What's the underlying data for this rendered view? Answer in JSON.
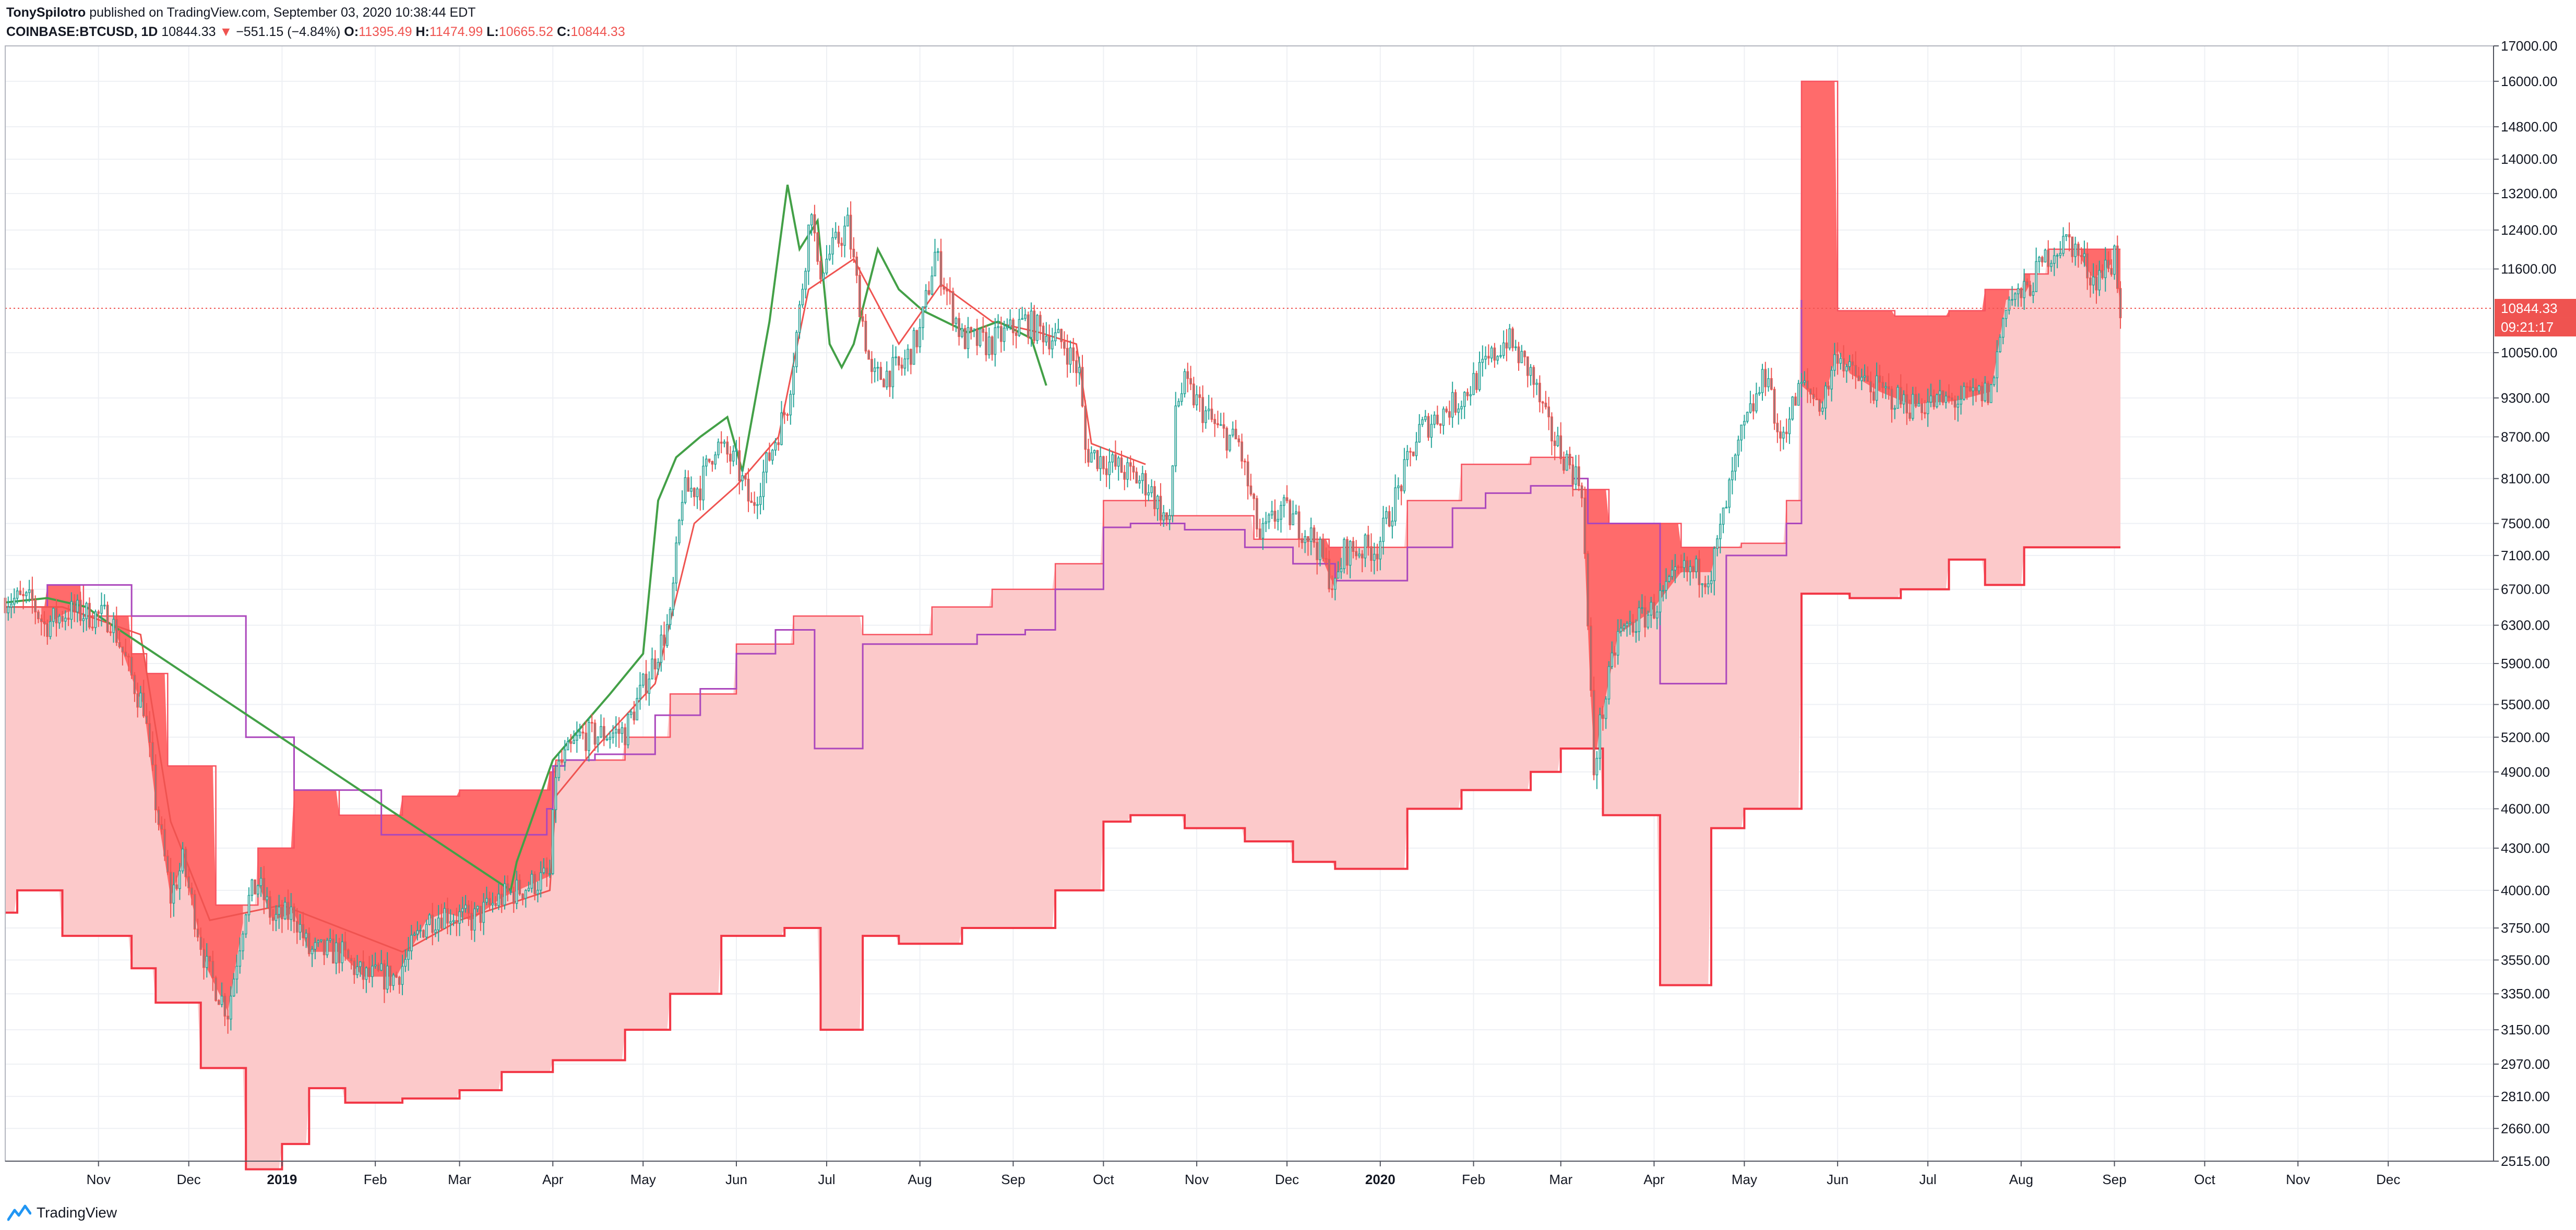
{
  "header": {
    "author": "TonySpilotro",
    "published_text": "published on TradingView.com, September 03, 2020 10:38:44 EDT",
    "symbol": "COINBASE:BTCUSD, 1D",
    "last": "10844.33",
    "change_arrow": "▼",
    "change": "−551.15 (−4.84%)",
    "o_label": "O:",
    "o_value": "11395.49",
    "h_label": "H:",
    "h_value": "11474.99",
    "l_label": "L:",
    "l_value": "10665.52",
    "c_label": "C:",
    "c_value": "10844.33"
  },
  "price_badge": {
    "price": "10844.33",
    "countdown": "09:21:17"
  },
  "footer": {
    "brand": "TradingView",
    "logo_icon": "tradingview-logo-icon"
  },
  "colors": {
    "background": "#ffffff",
    "grid": "#eef0f4",
    "up": "#26a69a",
    "down": "#ef5350",
    "candle_body": "#7a8587",
    "lagging_span": "#43a047",
    "conversion_line": "#ef5350",
    "base_line": "#ab47bc",
    "cloud_span_b": "#f23645",
    "cloud_fill_light": "#fcc9ca",
    "cloud_fill_dark": "#ff6b6b",
    "price_line": "#ef5350",
    "axis_text": "#131722"
  },
  "chart_data": {
    "type": "candlestick-ichimoku",
    "symbol": "COINBASE:BTCUSD",
    "interval": "1D",
    "y_scale": "log",
    "ylim": [
      2515,
      17000
    ],
    "x_range": [
      "2018-10-01",
      "2021-01-05"
    ],
    "grid": true,
    "y_ticks": [
      17000,
      16000,
      14800,
      14000,
      13200,
      12400,
      11600,
      10050,
      9300,
      8700,
      8100,
      7500,
      7100,
      6700,
      6300,
      5900,
      5500,
      5200,
      4900,
      4600,
      4300,
      4000,
      3750,
      3550,
      3350,
      3150,
      2970,
      2810,
      2660,
      2515
    ],
    "y_tick_labels": [
      "17000.00",
      "16000.00",
      "14800.00",
      "14000.00",
      "13200.00",
      "12400.00",
      "11600.00",
      "10050.00",
      "9300.00",
      "8700.00",
      "8100.00",
      "7500.00",
      "7100.00",
      "6700.00",
      "6300.00",
      "5900.00",
      "5500.00",
      "5200.00",
      "4900.00",
      "4600.00",
      "4300.00",
      "4000.00",
      "3750.00",
      "3550.00",
      "3350.00",
      "3150.00",
      "2970.00",
      "2810.00",
      "2660.00",
      "2515.00"
    ],
    "x_ticks": [
      {
        "date": "2018-11-01",
        "label": "Nov",
        "bold": false
      },
      {
        "date": "2018-12-01",
        "label": "Dec",
        "bold": false
      },
      {
        "date": "2019-01-01",
        "label": "2019",
        "bold": true
      },
      {
        "date": "2019-02-01",
        "label": "Feb",
        "bold": false
      },
      {
        "date": "2019-03-01",
        "label": "Mar",
        "bold": false
      },
      {
        "date": "2019-04-01",
        "label": "Apr",
        "bold": false
      },
      {
        "date": "2019-05-01",
        "label": "May",
        "bold": false
      },
      {
        "date": "2019-06-01",
        "label": "Jun",
        "bold": false
      },
      {
        "date": "2019-07-01",
        "label": "Jul",
        "bold": false
      },
      {
        "date": "2019-08-01",
        "label": "Aug",
        "bold": false
      },
      {
        "date": "2019-09-01",
        "label": "Sep",
        "bold": false
      },
      {
        "date": "2019-10-01",
        "label": "Oct",
        "bold": false
      },
      {
        "date": "2019-11-01",
        "label": "Nov",
        "bold": false
      },
      {
        "date": "2019-12-01",
        "label": "Dec",
        "bold": false
      },
      {
        "date": "2020-01-01",
        "label": "2020",
        "bold": true
      },
      {
        "date": "2020-02-01",
        "label": "Feb",
        "bold": false
      },
      {
        "date": "2020-03-01",
        "label": "Mar",
        "bold": false
      },
      {
        "date": "2020-04-01",
        "label": "Apr",
        "bold": false
      },
      {
        "date": "2020-05-01",
        "label": "May",
        "bold": false
      },
      {
        "date": "2020-06-01",
        "label": "Jun",
        "bold": false
      },
      {
        "date": "2020-07-01",
        "label": "Jul",
        "bold": false
      },
      {
        "date": "2020-08-01",
        "label": "Aug",
        "bold": false
      },
      {
        "date": "2020-09-01",
        "label": "Sep",
        "bold": false
      },
      {
        "date": "2020-10-01",
        "label": "Oct",
        "bold": false
      },
      {
        "date": "2020-11-01",
        "label": "Nov",
        "bold": false
      },
      {
        "date": "2020-12-01",
        "label": "Dec",
        "bold": false
      }
    ],
    "close_path": [
      [
        "2018-10-01",
        6600
      ],
      [
        "2018-10-10",
        6550
      ],
      [
        "2018-10-14",
        6300
      ],
      [
        "2018-10-22",
        6450
      ],
      [
        "2018-11-05",
        6380
      ],
      [
        "2018-11-14",
        5600
      ],
      [
        "2018-11-16",
        5500
      ],
      [
        "2018-11-20",
        4650
      ],
      [
        "2018-11-25",
        3950
      ],
      [
        "2018-11-29",
        4200
      ],
      [
        "2018-12-07",
        3500
      ],
      [
        "2018-12-14",
        3250
      ],
      [
        "2018-12-20",
        3900
      ],
      [
        "2018-12-24",
        4050
      ],
      [
        "2018-12-29",
        3800
      ],
      [
        "2019-01-05",
        3850
      ],
      [
        "2019-01-10",
        3600
      ],
      [
        "2019-01-20",
        3600
      ],
      [
        "2019-01-28",
        3450
      ],
      [
        "2019-02-08",
        3450
      ],
      [
        "2019-02-18",
        3800
      ],
      [
        "2019-02-24",
        3850
      ],
      [
        "2019-03-05",
        3800
      ],
      [
        "2019-03-15",
        3950
      ],
      [
        "2019-03-31",
        4100
      ],
      [
        "2019-04-02",
        4900
      ],
      [
        "2019-04-10",
        5200
      ],
      [
        "2019-04-25",
        5250
      ],
      [
        "2019-05-10",
        6350
      ],
      [
        "2019-05-14",
        7900
      ],
      [
        "2019-05-20",
        8000
      ],
      [
        "2019-05-25",
        8600
      ],
      [
        "2019-06-01",
        8300
      ],
      [
        "2019-06-06",
        7700
      ],
      [
        "2019-06-18",
        9200
      ],
      [
        "2019-06-22",
        10800
      ],
      [
        "2019-06-26",
        13000
      ],
      [
        "2019-06-28",
        11500
      ],
      [
        "2019-07-08",
        12500
      ],
      [
        "2019-07-16",
        9600
      ],
      [
        "2019-07-26",
        9800
      ],
      [
        "2019-08-01",
        10400
      ],
      [
        "2019-08-06",
        11900
      ],
      [
        "2019-08-15",
        10300
      ],
      [
        "2019-08-24",
        10200
      ],
      [
        "2019-09-05",
        10600
      ],
      [
        "2019-09-18",
        10200
      ],
      [
        "2019-09-23",
        9700
      ],
      [
        "2019-09-25",
        8500
      ],
      [
        "2019-10-08",
        8200
      ],
      [
        "2019-10-16",
        8000
      ],
      [
        "2019-10-23",
        7450
      ],
      [
        "2019-10-25",
        9200
      ],
      [
        "2019-10-28",
        9500
      ],
      [
        "2019-11-08",
        8800
      ],
      [
        "2019-11-15",
        8600
      ],
      [
        "2019-11-22",
        7300
      ],
      [
        "2019-11-29",
        7700
      ],
      [
        "2019-12-10",
        7300
      ],
      [
        "2019-12-17",
        6700
      ],
      [
        "2019-12-20",
        7150
      ],
      [
        "2019-12-31",
        7200
      ],
      [
        "2020-01-08",
        8050
      ],
      [
        "2020-01-14",
        8800
      ],
      [
        "2020-01-28",
        9300
      ],
      [
        "2020-02-12",
        10300
      ],
      [
        "2020-02-20",
        9700
      ],
      [
        "2020-02-26",
        8800
      ],
      [
        "2020-03-08",
        8000
      ],
      [
        "2020-03-12",
        4900
      ],
      [
        "2020-03-14",
        5300
      ],
      [
        "2020-03-20",
        6200
      ],
      [
        "2020-03-31",
        6450
      ],
      [
        "2020-04-10",
        6900
      ],
      [
        "2020-04-20",
        6900
      ],
      [
        "2020-04-30",
        8700
      ],
      [
        "2020-05-09",
        9800
      ],
      [
        "2020-05-12",
        8600
      ],
      [
        "2020-05-20",
        9500
      ],
      [
        "2020-05-27",
        9200
      ],
      [
        "2020-06-01",
        10100
      ],
      [
        "2020-06-05",
        9700
      ],
      [
        "2020-06-15",
        9400
      ],
      [
        "2020-06-25",
        9200
      ],
      [
        "2020-07-10",
        9250
      ],
      [
        "2020-07-22",
        9400
      ],
      [
        "2020-07-27",
        11000
      ],
      [
        "2020-08-02",
        11100
      ],
      [
        "2020-08-10",
        11900
      ],
      [
        "2020-08-17",
        12200
      ],
      [
        "2020-08-25",
        11400
      ],
      [
        "2020-08-31",
        11700
      ],
      [
        "2020-09-01",
        11950
      ],
      [
        "2020-09-03",
        10844
      ]
    ],
    "lagging_span": [
      [
        "2018-10-01",
        6550
      ],
      [
        "2018-10-15",
        6600
      ],
      [
        "2018-10-28",
        6500
      ],
      [
        "2018-11-01",
        6400
      ],
      [
        "2019-03-18",
        4000
      ],
      [
        "2019-03-20",
        4200
      ],
      [
        "2019-04-01",
        5000
      ],
      [
        "2019-04-20",
        5600
      ],
      [
        "2019-05-01",
        6000
      ],
      [
        "2019-05-06",
        7800
      ],
      [
        "2019-05-12",
        8400
      ],
      [
        "2019-05-20",
        8700
      ],
      [
        "2019-05-29",
        9000
      ],
      [
        "2019-06-03",
        8200
      ],
      [
        "2019-06-12",
        10600
      ],
      [
        "2019-06-18",
        13400
      ],
      [
        "2019-06-22",
        12000
      ],
      [
        "2019-06-28",
        12600
      ],
      [
        "2019-07-02",
        10200
      ],
      [
        "2019-07-06",
        9800
      ],
      [
        "2019-07-10",
        10200
      ],
      [
        "2019-07-18",
        12000
      ],
      [
        "2019-07-25",
        11200
      ],
      [
        "2019-08-02",
        10800
      ],
      [
        "2019-08-17",
        10400
      ],
      [
        "2019-08-27",
        10600
      ],
      [
        "2019-09-07",
        10300
      ],
      [
        "2019-09-12",
        9500
      ]
    ],
    "conversion_line": [
      [
        "2018-10-01",
        6500
      ],
      [
        "2018-10-20",
        6500
      ],
      [
        "2018-11-15",
        6200
      ],
      [
        "2018-11-25",
        4500
      ],
      [
        "2018-12-08",
        3800
      ],
      [
        "2019-01-01",
        3900
      ],
      [
        "2019-02-10",
        3600
      ],
      [
        "2019-03-01",
        3800
      ],
      [
        "2019-03-31",
        4000
      ],
      [
        "2019-04-02",
        4700
      ],
      [
        "2019-04-15",
        5100
      ],
      [
        "2019-05-05",
        5700
      ],
      [
        "2019-05-18",
        7500
      ],
      [
        "2019-06-01",
        8000
      ],
      [
        "2019-06-15",
        8700
      ],
      [
        "2019-06-25",
        11200
      ],
      [
        "2019-07-10",
        11800
      ],
      [
        "2019-07-25",
        10200
      ],
      [
        "2019-08-08",
        11300
      ],
      [
        "2019-08-25",
        10600
      ],
      [
        "2019-09-10",
        10400
      ],
      [
        "2019-09-22",
        10200
      ],
      [
        "2019-09-27",
        8600
      ],
      [
        "2019-10-15",
        8300
      ]
    ],
    "base_line_steps": [
      [
        "2018-10-01",
        6500
      ],
      [
        "2018-10-15",
        6750
      ],
      [
        "2018-11-12",
        6400
      ],
      [
        "2018-12-20",
        5200
      ],
      [
        "2019-01-05",
        4750
      ],
      [
        "2019-02-03",
        4400
      ],
      [
        "2019-03-30",
        4600
      ],
      [
        "2019-04-01",
        4950
      ],
      [
        "2019-04-05",
        5000
      ],
      [
        "2019-04-15",
        5050
      ],
      [
        "2019-05-05",
        5400
      ],
      [
        "2019-05-20",
        5650
      ],
      [
        "2019-06-01",
        6000
      ],
      [
        "2019-06-14",
        6250
      ],
      [
        "2019-06-27",
        5100
      ],
      [
        "2019-07-13",
        6100
      ],
      [
        "2019-08-03",
        6100
      ],
      [
        "2019-08-20",
        6200
      ],
      [
        "2019-09-05",
        6250
      ],
      [
        "2019-09-15",
        6700
      ],
      [
        "2019-10-01",
        7450
      ],
      [
        "2019-10-10",
        7500
      ],
      [
        "2019-10-28",
        7420
      ],
      [
        "2019-11-17",
        7200
      ],
      [
        "2019-12-03",
        7000
      ],
      [
        "2019-12-17",
        6800
      ],
      [
        "2020-01-10",
        7200
      ],
      [
        "2020-01-25",
        7700
      ],
      [
        "2020-02-05",
        7900
      ],
      [
        "2020-02-20",
        8000
      ],
      [
        "2020-03-05",
        8100
      ],
      [
        "2020-03-10",
        7500
      ],
      [
        "2020-04-03",
        5700
      ],
      [
        "2020-04-25",
        7100
      ],
      [
        "2020-05-15",
        7500
      ],
      [
        "2020-05-20",
        11000
      ]
    ],
    "span_a_steps": [
      [
        "2018-10-01",
        6500
      ],
      [
        "2018-10-15",
        6750
      ],
      [
        "2018-10-27",
        6400
      ],
      [
        "2018-11-12",
        6000
      ],
      [
        "2018-11-17",
        5800
      ],
      [
        "2018-11-24",
        4950
      ],
      [
        "2018-12-10",
        3900
      ],
      [
        "2018-12-24",
        4300
      ],
      [
        "2019-01-05",
        4750
      ],
      [
        "2019-01-20",
        4550
      ],
      [
        "2019-02-10",
        4700
      ],
      [
        "2019-03-01",
        4750
      ],
      [
        "2019-03-31",
        4900
      ],
      [
        "2019-04-02",
        5000
      ],
      [
        "2019-04-25",
        5200
      ],
      [
        "2019-05-10",
        5600
      ],
      [
        "2019-06-01",
        6100
      ],
      [
        "2019-06-20",
        6400
      ],
      [
        "2019-07-13",
        6200
      ],
      [
        "2019-07-25",
        6200
      ],
      [
        "2019-08-05",
        6500
      ],
      [
        "2019-08-25",
        6700
      ],
      [
        "2019-09-15",
        7000
      ],
      [
        "2019-10-01",
        7800
      ],
      [
        "2019-10-20",
        7600
      ],
      [
        "2019-11-20",
        7300
      ],
      [
        "2019-12-15",
        7200
      ],
      [
        "2020-01-10",
        7800
      ],
      [
        "2020-01-28",
        8300
      ],
      [
        "2020-02-20",
        8400
      ],
      [
        "2020-03-05",
        7950
      ],
      [
        "2020-03-17",
        7500
      ],
      [
        "2020-04-10",
        7200
      ],
      [
        "2020-04-30",
        7250
      ],
      [
        "2020-05-15",
        7800
      ],
      [
        "2020-05-20",
        16000
      ],
      [
        "2020-06-01",
        10800
      ],
      [
        "2020-06-20",
        10700
      ],
      [
        "2020-07-08",
        10800
      ],
      [
        "2020-07-20",
        11200
      ],
      [
        "2020-08-02",
        11500
      ],
      [
        "2020-08-10",
        12000
      ],
      [
        "2020-08-31",
        12000
      ],
      [
        "2020-09-01",
        12000
      ],
      [
        "2020-09-03",
        12000
      ]
    ],
    "span_b_steps": [
      [
        "2018-10-01",
        3850
      ],
      [
        "2018-10-05",
        4000
      ],
      [
        "2018-10-20",
        3700
      ],
      [
        "2018-11-12",
        3500
      ],
      [
        "2018-11-20",
        3300
      ],
      [
        "2018-12-05",
        2950
      ],
      [
        "2018-12-20",
        2480
      ],
      [
        "2019-01-01",
        2590
      ],
      [
        "2019-01-10",
        2850
      ],
      [
        "2019-01-22",
        2780
      ],
      [
        "2019-02-10",
        2800
      ],
      [
        "2019-03-01",
        2840
      ],
      [
        "2019-03-15",
        2930
      ],
      [
        "2019-04-01",
        2990
      ],
      [
        "2019-04-25",
        3150
      ],
      [
        "2019-05-10",
        3350
      ],
      [
        "2019-05-27",
        3700
      ],
      [
        "2019-06-17",
        3750
      ],
      [
        "2019-06-29",
        3150
      ],
      [
        "2019-07-13",
        3700
      ],
      [
        "2019-07-25",
        3650
      ],
      [
        "2019-08-15",
        3750
      ],
      [
        "2019-09-15",
        4000
      ],
      [
        "2019-10-01",
        4500
      ],
      [
        "2019-10-10",
        4550
      ],
      [
        "2019-10-28",
        4450
      ],
      [
        "2019-11-17",
        4350
      ],
      [
        "2019-12-03",
        4200
      ],
      [
        "2019-12-17",
        4150
      ],
      [
        "2020-01-10",
        4600
      ],
      [
        "2020-01-28",
        4750
      ],
      [
        "2020-02-20",
        4900
      ],
      [
        "2020-03-01",
        5100
      ],
      [
        "2020-03-15",
        4550
      ],
      [
        "2020-04-03",
        3400
      ],
      [
        "2020-04-20",
        4450
      ],
      [
        "2020-05-01",
        4600
      ],
      [
        "2020-05-20",
        6650
      ],
      [
        "2020-06-05",
        6600
      ],
      [
        "2020-06-22",
        6700
      ],
      [
        "2020-07-08",
        7050
      ],
      [
        "2020-07-20",
        6750
      ],
      [
        "2020-08-02",
        7200
      ],
      [
        "2020-09-03",
        7200
      ]
    ]
  }
}
